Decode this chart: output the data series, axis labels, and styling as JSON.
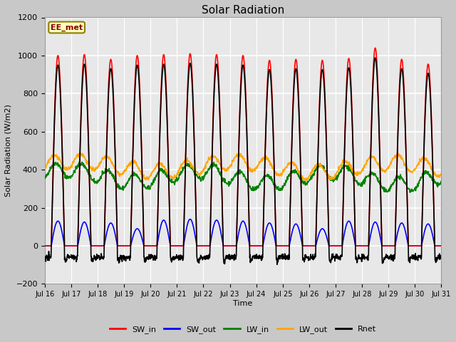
{
  "title": "Solar Radiation",
  "ylabel": "Solar Radiation (W/m2)",
  "xlabel": "Time",
  "ylim": [
    -200,
    1200
  ],
  "yticks": [
    -200,
    0,
    200,
    400,
    600,
    800,
    1000,
    1200
  ],
  "xtick_labels": [
    "Jul 16",
    "Jul 17",
    "Jul 18",
    "Jul 19",
    "Jul 20",
    "Jul 21",
    "Jul 22",
    "Jul 23",
    "Jul 24",
    "Jul 25",
    "Jul 26",
    "Jul 27",
    "Jul 28",
    "Jul 29",
    "Jul 30",
    "Jul 31"
  ],
  "annotation_text": "EE_met",
  "annotation_color": "#8B0000",
  "annotation_bg": "#FFFFC0",
  "annotation_edge": "#8B8000",
  "fig_bg": "#C8C8C8",
  "plot_bg": "#E8E8E8",
  "grid_color": "#FFFFFF",
  "series": {
    "SW_in": {
      "color": "red",
      "lw": 1.2
    },
    "SW_out": {
      "color": "blue",
      "lw": 1.2
    },
    "LW_in": {
      "color": "green",
      "lw": 1.2
    },
    "LW_out": {
      "color": "orange",
      "lw": 1.2
    },
    "Rnet": {
      "color": "black",
      "lw": 1.2
    }
  },
  "n_days": 15,
  "points_per_day": 96,
  "sw_in_peaks": [
    1000,
    1005,
    980,
    1000,
    1005,
    1010,
    1005,
    1000,
    975,
    980,
    975,
    985,
    1040,
    980,
    955
  ],
  "sw_out_peaks": [
    130,
    125,
    120,
    90,
    135,
    140,
    135,
    130,
    120,
    115,
    90,
    130,
    125,
    120,
    115
  ],
  "rnet_night": -60,
  "rnet_noise": 8,
  "lw_in_base": 370,
  "lw_out_base": 420
}
